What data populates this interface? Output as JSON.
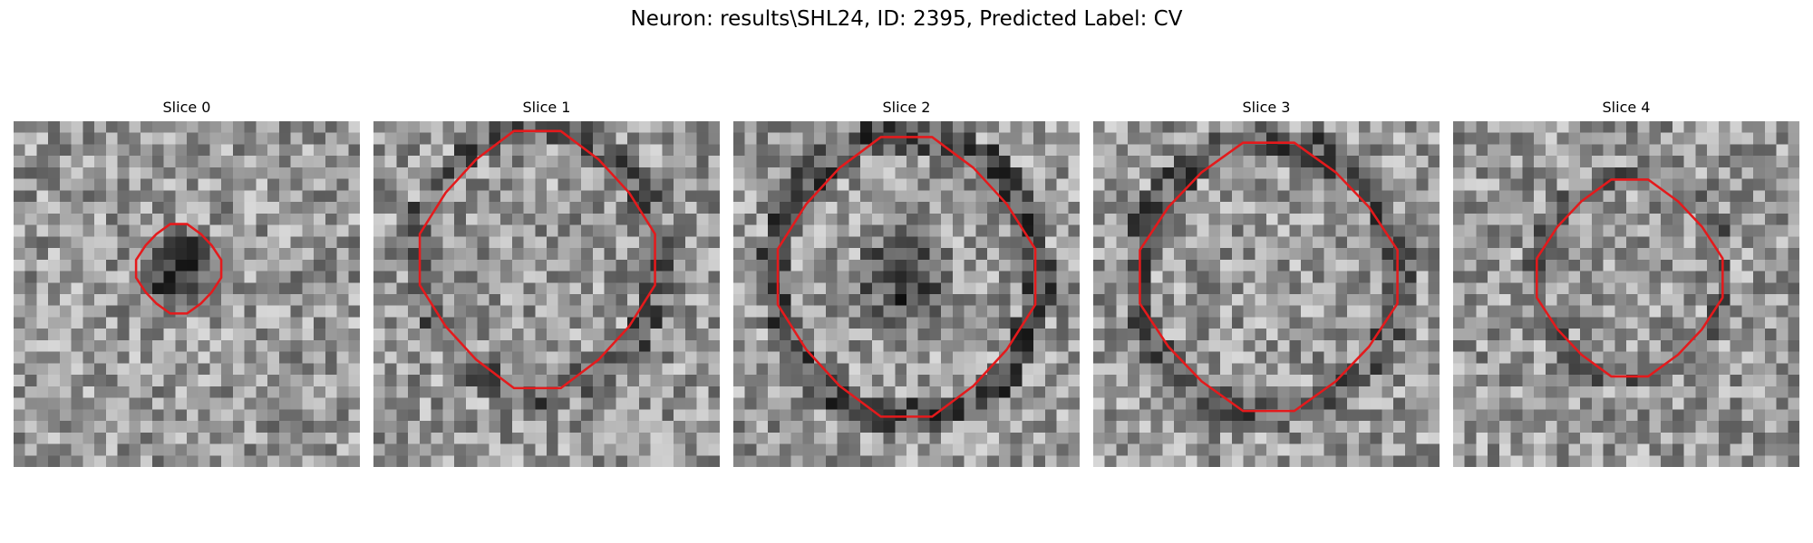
{
  "figure": {
    "title": "Neuron: results\\SHL24, ID: 2395, Predicted Label: CV"
  },
  "panels": [
    {
      "title": "Slice 0",
      "contour_color": "#e41a1c"
    },
    {
      "title": "Slice 1",
      "contour_color": "#e41a1c"
    },
    {
      "title": "Slice 2",
      "contour_color": "#e41a1c"
    },
    {
      "title": "Slice 3",
      "contour_color": "#e41a1c"
    },
    {
      "title": "Slice 4",
      "contour_color": "#e41a1c"
    }
  ],
  "colors": {
    "contour": "#e41a1c",
    "background": "#ffffff"
  }
}
